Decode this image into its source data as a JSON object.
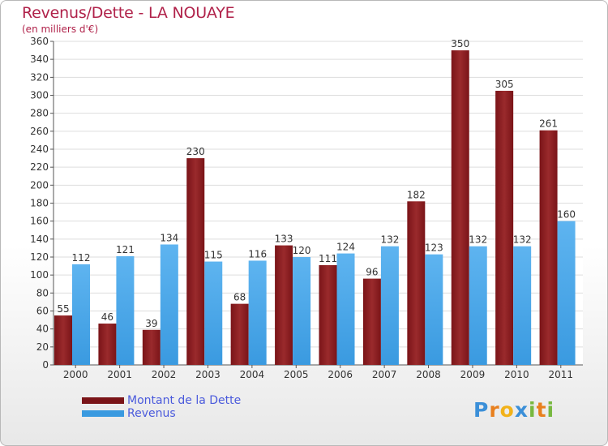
{
  "header": {
    "title": "Revenus/Dette - LA NOUAYE",
    "subtitle": "(en milliers d'€)"
  },
  "legend": {
    "debt_label": "Montant de la Dette",
    "revenue_label": "Revenus"
  },
  "logo": {
    "text": "Proxiti",
    "letters": [
      {
        "ch": "P",
        "color": "#3b8fd8"
      },
      {
        "ch": "r",
        "color": "#e8801e"
      },
      {
        "ch": "o",
        "color": "#f2b21a"
      },
      {
        "ch": "x",
        "color": "#3b8fd8"
      },
      {
        "ch": "i",
        "color": "#78b840"
      },
      {
        "ch": "t",
        "color": "#e8801e"
      },
      {
        "ch": "i",
        "color": "#78b840"
      }
    ]
  },
  "colors": {
    "debt": "#7a1418",
    "debt_light": "#9a2a2c",
    "revenue": "#3a9ae0",
    "revenue_light": "#5eb4f0",
    "title": "#b0224a"
  },
  "chart_data": {
    "type": "bar",
    "title": "Revenus/Dette - LA NOUAYE",
    "ylabel": "(en milliers d'€)",
    "xlabel": "",
    "categories": [
      "2000",
      "2001",
      "2002",
      "2003",
      "2004",
      "2005",
      "2006",
      "2007",
      "2008",
      "2009",
      "2010",
      "2011"
    ],
    "series": [
      {
        "name": "Montant de la Dette",
        "values": [
          55,
          46,
          39,
          230,
          68,
          133,
          111,
          96,
          182,
          350,
          305,
          261
        ]
      },
      {
        "name": "Revenus",
        "values": [
          112,
          121,
          134,
          115,
          116,
          120,
          124,
          132,
          123,
          132,
          132,
          160
        ]
      }
    ],
    "ylim": [
      0,
      360
    ],
    "ytick_step": 20,
    "grid": true,
    "legend_position": "bottom-left"
  }
}
